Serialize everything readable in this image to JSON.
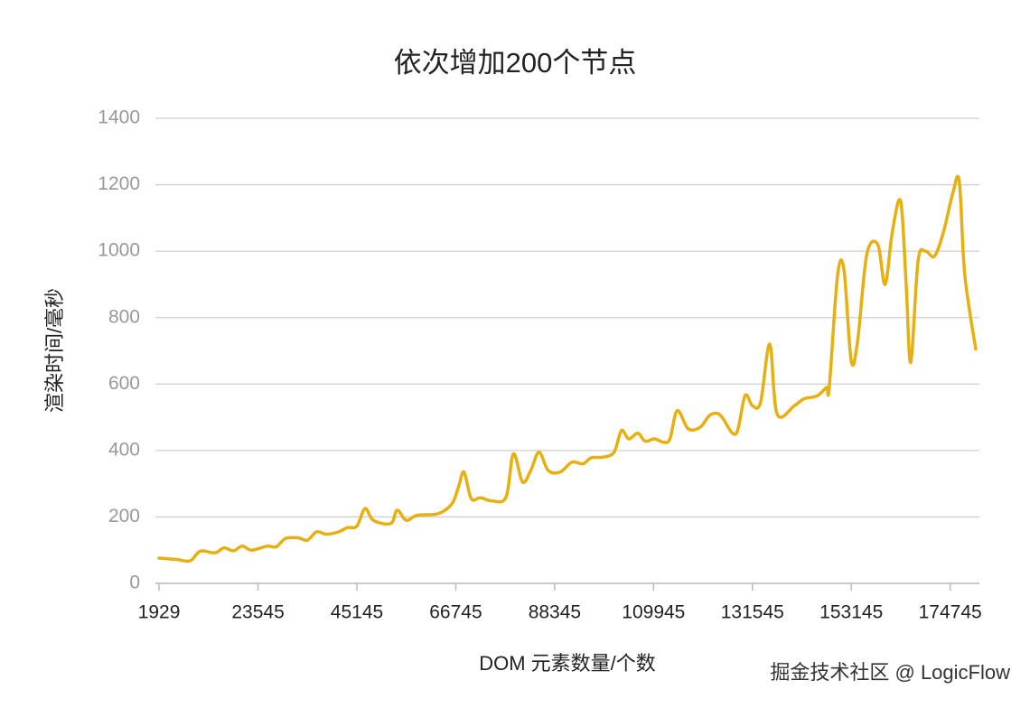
{
  "chart_data": {
    "type": "line",
    "title": "依次增加200个节点",
    "x_label": "DOM 元素数量/个数",
    "y_label": "渲染时间/毫秒",
    "watermark": "掘金技术社区 @ LogicFlow",
    "x": [
      1929,
      5729,
      8729,
      10929,
      14129,
      16129,
      18129,
      20129,
      22129,
      25529,
      27529,
      29529,
      32329,
      34329,
      36329,
      38529,
      41129,
      43129,
      45129,
      46929,
      48729,
      52529,
      53929,
      55929,
      58329,
      62929,
      65929,
      67329,
      68529,
      70129,
      72129,
      74729,
      77729,
      79329,
      81329,
      83129,
      84929,
      86929,
      89529,
      92129,
      94529,
      96329,
      98929,
      101329,
      102929,
      104529,
      106529,
      108129,
      110129,
      112129,
      113529,
      115129,
      117529,
      120129,
      122129,
      123729,
      124929,
      127929,
      129929,
      131529,
      133329,
      135329,
      136929,
      140729,
      142729,
      145729,
      147729,
      148329,
      150129,
      151529,
      153129,
      154529,
      156529,
      158929,
      160529,
      162129,
      163929,
      165129,
      166129,
      167729,
      169329,
      171329,
      173329,
      175329,
      176729,
      177929,
      180329
    ],
    "series": [
      {
        "name": "渲染时间",
        "color": "#e6b012",
        "values": [
          76,
          72,
          68,
          97,
          92,
          107,
          98,
          112,
          100,
          112,
          110,
          135,
          137,
          130,
          155,
          148,
          155,
          168,
          172,
          225,
          190,
          180,
          220,
          190,
          205,
          210,
          240,
          290,
          335,
          255,
          258,
          248,
          260,
          390,
          305,
          340,
          395,
          340,
          335,
          365,
          360,
          378,
          380,
          395,
          460,
          435,
          452,
          428,
          435,
          425,
          435,
          520,
          465,
          470,
          505,
          512,
          500,
          450,
          565,
          535,
          545,
          720,
          510,
          535,
          555,
          565,
          590,
          590,
          925,
          945,
          670,
          730,
          990,
          1020,
          900,
          1060,
          1150,
          900,
          665,
          970,
          1000,
          985,
          1060,
          1175,
          1210,
          930,
          705
        ]
      }
    ],
    "xlim": [
      1129,
      181129
    ],
    "xticks": [
      1929,
      23545,
      45145,
      66745,
      88345,
      109945,
      131545,
      153145,
      174745
    ],
    "ylim": [
      0,
      1400
    ],
    "yticks": [
      0,
      200,
      400,
      600,
      800,
      1000,
      1200,
      1400
    ],
    "grid": true
  }
}
